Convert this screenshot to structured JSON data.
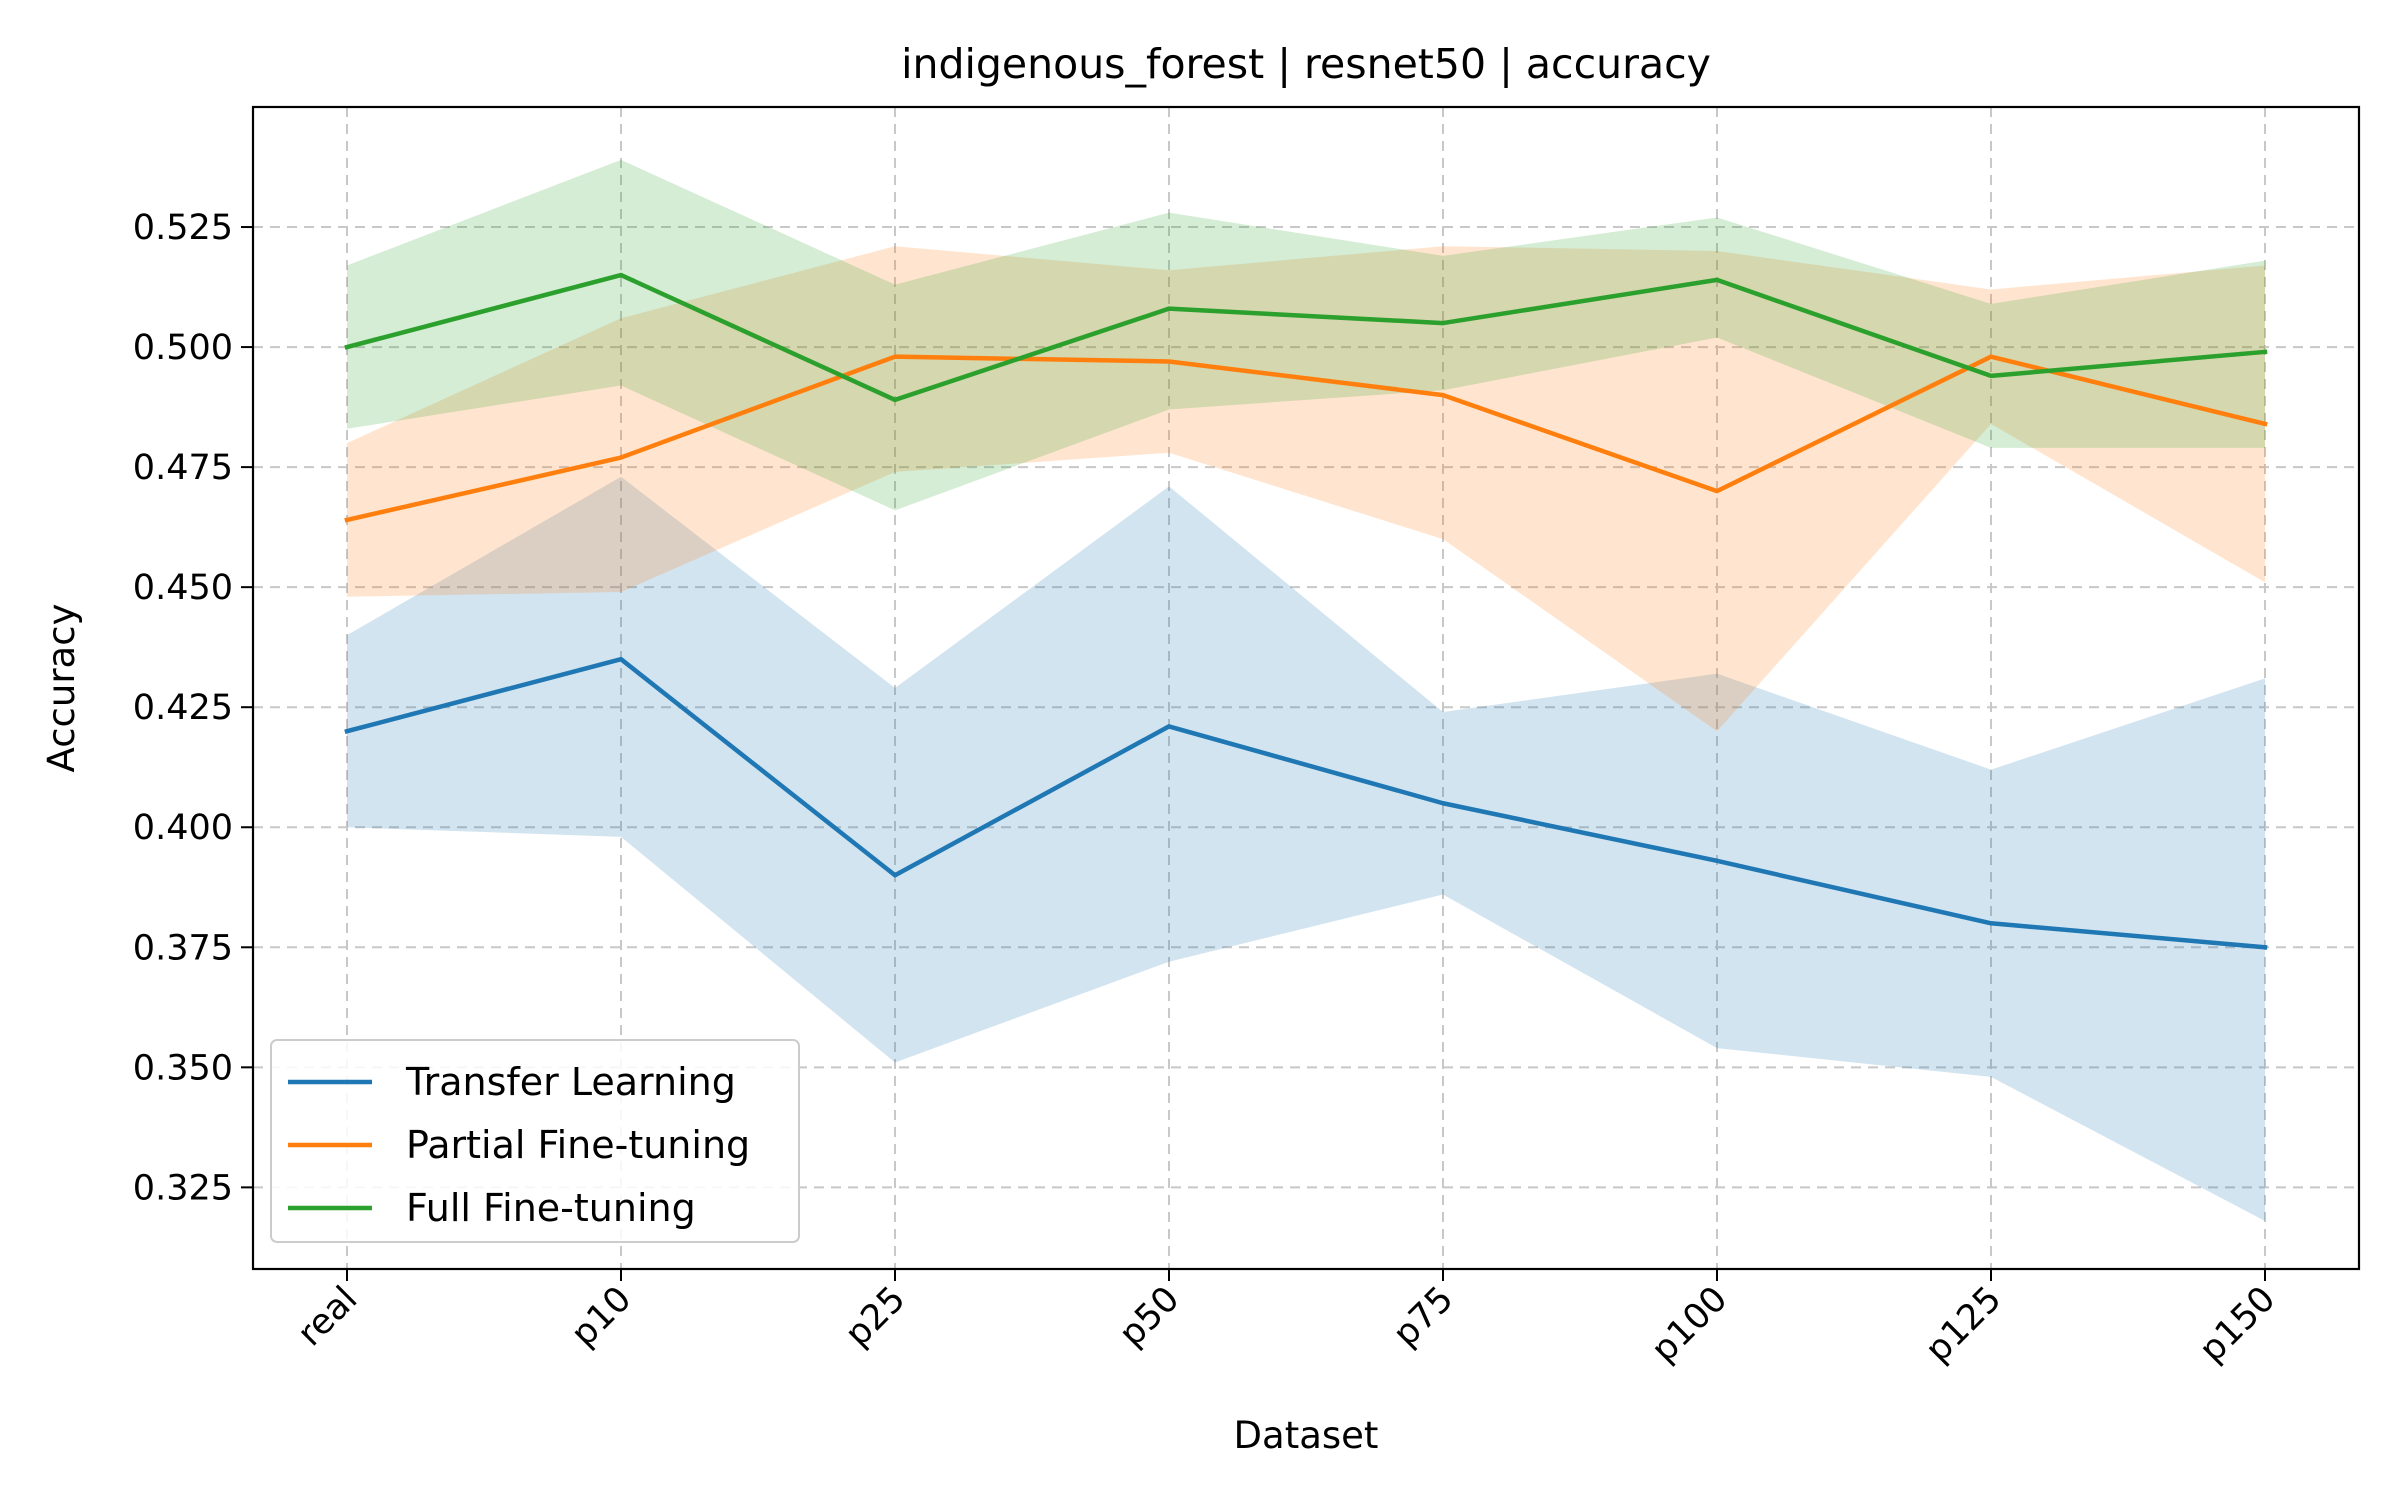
{
  "chart_data": {
    "type": "line",
    "title": "indigenous_forest | resnet50 | accuracy",
    "xlabel": "Dataset",
    "ylabel": "Accuracy",
    "categories": [
      "real",
      "p10",
      "p25",
      "p50",
      "p75",
      "p100",
      "p125",
      "p150"
    ],
    "ylim": [
      0.308,
      0.55
    ],
    "yticks": [
      0.325,
      0.35,
      0.375,
      0.4,
      0.425,
      0.45,
      0.475,
      0.5,
      0.525
    ],
    "ytick_labels": [
      "0.325",
      "0.350",
      "0.375",
      "0.400",
      "0.425",
      "0.450",
      "0.475",
      "0.500",
      "0.525"
    ],
    "grid": true,
    "legend_position": "lower-left",
    "series": [
      {
        "name": "Transfer Learning",
        "color": "#1f77b4",
        "values": [
          0.42,
          0.435,
          0.39,
          0.421,
          0.405,
          0.393,
          0.38,
          0.375
        ],
        "lower": [
          0.4,
          0.398,
          0.351,
          0.372,
          0.386,
          0.354,
          0.348,
          0.318
        ],
        "upper": [
          0.44,
          0.473,
          0.429,
          0.471,
          0.424,
          0.432,
          0.412,
          0.431
        ]
      },
      {
        "name": "Partial Fine-tuning",
        "color": "#ff7f0e",
        "values": [
          0.464,
          0.477,
          0.498,
          0.497,
          0.49,
          0.47,
          0.498,
          0.484
        ],
        "lower": [
          0.448,
          0.449,
          0.474,
          0.478,
          0.46,
          0.42,
          0.484,
          0.451
        ],
        "upper": [
          0.48,
          0.506,
          0.521,
          0.516,
          0.521,
          0.52,
          0.512,
          0.517
        ]
      },
      {
        "name": "Full Fine-tuning",
        "color": "#2ca02c",
        "values": [
          0.5,
          0.515,
          0.489,
          0.508,
          0.505,
          0.514,
          0.494,
          0.499
        ],
        "lower": [
          0.483,
          0.492,
          0.466,
          0.487,
          0.491,
          0.502,
          0.479,
          0.479
        ],
        "upper": [
          0.517,
          0.539,
          0.513,
          0.528,
          0.519,
          0.527,
          0.509,
          0.518
        ]
      }
    ]
  }
}
